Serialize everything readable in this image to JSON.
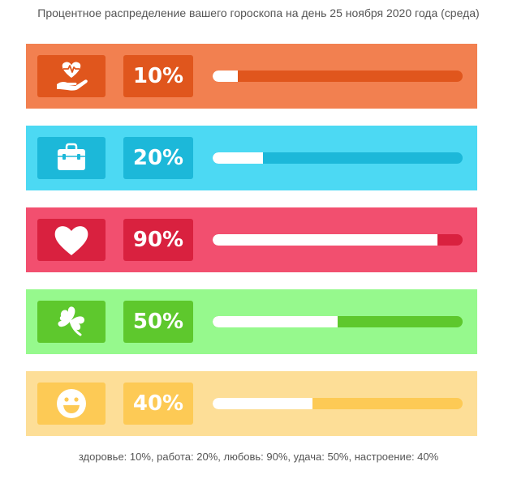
{
  "title": "Процентное распределение вашего гороскопа на день 25 ноября 2020 года (среда)",
  "rows": [
    {
      "key": "health",
      "icon": "health-heart-hand-icon",
      "percent_label": "10%",
      "value": 0.1,
      "colors": {
        "bg": "#f28050",
        "box": "#e0561d",
        "track": "#e0561d"
      }
    },
    {
      "key": "work",
      "icon": "briefcase-icon",
      "percent_label": "20%",
      "value": 0.2,
      "colors": {
        "bg": "#4cd9f3",
        "box": "#1cb8d9",
        "track": "#1cb8d9"
      }
    },
    {
      "key": "love",
      "icon": "heart-icon",
      "percent_label": "90%",
      "value": 0.9,
      "colors": {
        "bg": "#f24f6f",
        "box": "#d9213f",
        "track": "#d9213f"
      }
    },
    {
      "key": "luck",
      "icon": "clover-icon",
      "percent_label": "50%",
      "value": 0.5,
      "colors": {
        "bg": "#96f98d",
        "box": "#5ec82d",
        "track": "#5ec82d"
      }
    },
    {
      "key": "mood",
      "icon": "smiley-icon",
      "percent_label": "40%",
      "value": 0.4,
      "colors": {
        "bg": "#fdde97",
        "box": "#fdca55",
        "track": "#fdca55"
      }
    }
  ],
  "footer": "здоровье: 10%, работа: 20%, любовь: 90%, удача: 50%, настроение: 40%"
}
